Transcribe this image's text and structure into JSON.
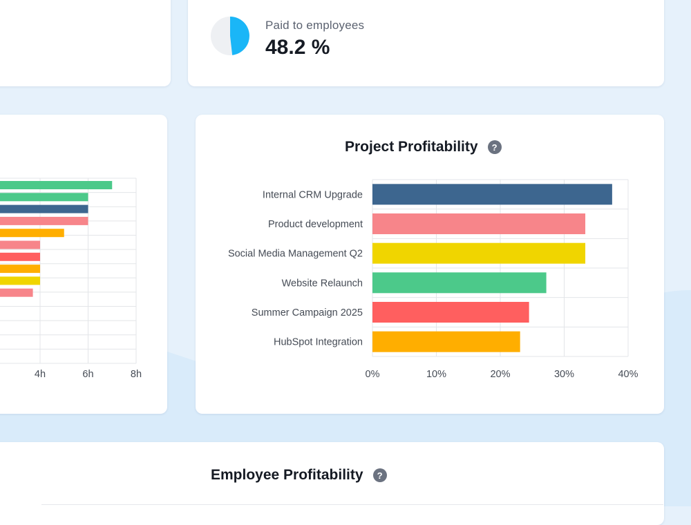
{
  "kpi": {
    "label": "Paid to employees",
    "value": "48.2 %",
    "fraction": 0.482,
    "pie_fill_color": "#1ab6f7",
    "pie_track_color": "#eef0f3"
  },
  "project_card": {
    "title": "Project Profitability",
    "help_glyph": "?"
  },
  "employee_card": {
    "title": "Employee Profitability",
    "help_glyph": "?"
  },
  "chart_data": [
    {
      "type": "bar",
      "orientation": "horizontal",
      "title": "Project Profitability",
      "categories": [
        "Internal CRM Upgrade",
        "Product development",
        "Social Media Management Q2",
        "Website Relaunch",
        "Summer Campaign 2025",
        "HubSpot Integration"
      ],
      "values": [
        37.5,
        33.3,
        33.3,
        27.2,
        24.5,
        23.1
      ],
      "colors": [
        "#3d668f",
        "#f7858a",
        "#f0d500",
        "#4cc98a",
        "#ff5f5f",
        "#ffae00"
      ],
      "xlim": [
        0,
        40
      ],
      "ticks": [
        0,
        10,
        20,
        30,
        40
      ],
      "tick_labels": [
        "0%",
        "10%",
        "20%",
        "30%",
        "40%"
      ],
      "grid": true
    },
    {
      "type": "bar",
      "orientation": "horizontal",
      "title": "",
      "values": [
        7,
        6,
        6,
        6,
        5,
        4,
        4,
        4,
        4,
        3.7
      ],
      "colors": [
        "#4cc98a",
        "#4cc98a",
        "#3d668f",
        "#f7858a",
        "#ffae00",
        "#f7858a",
        "#ff5f5f",
        "#ffae00",
        "#f0d500",
        "#f7858a"
      ],
      "xlim": [
        0,
        8
      ],
      "tick_labels": [
        "4h",
        "6h",
        "8h"
      ],
      "tick_values": [
        4,
        6,
        8
      ],
      "grid": true
    }
  ]
}
